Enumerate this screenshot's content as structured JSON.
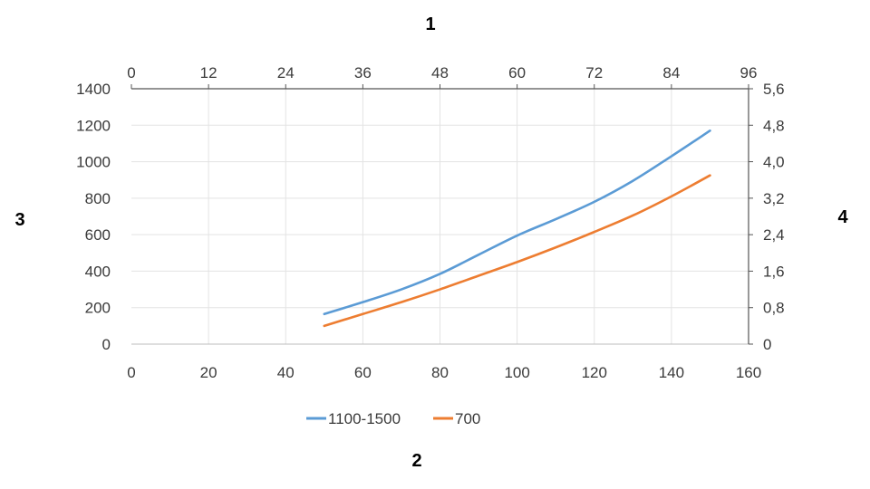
{
  "labels": {
    "top": "1",
    "bottom": "2",
    "left": "3",
    "right": "4"
  },
  "chart_data": {
    "type": "line",
    "title": "",
    "grid": true,
    "legend_position": "bottom",
    "axes": {
      "x_bottom": {
        "min": 0,
        "max": 160,
        "ticks": [
          "0",
          "20",
          "40",
          "60",
          "80",
          "100",
          "120",
          "140",
          "160"
        ]
      },
      "x_top": {
        "min": 0,
        "max": 96,
        "ticks": [
          "0",
          "12",
          "24",
          "36",
          "48",
          "60",
          "72",
          "84",
          "96"
        ]
      },
      "y_left": {
        "min": 0,
        "max": 1400,
        "ticks": [
          "0",
          "200",
          "400",
          "600",
          "800",
          "1000",
          "1200",
          "1400"
        ]
      },
      "y_right": {
        "min": 0,
        "max": 5.6,
        "ticks": [
          "0",
          "0,8",
          "1,6",
          "2,4",
          "3,2",
          "4,0",
          "4,8",
          "5,6"
        ]
      }
    },
    "series": [
      {
        "name": "1100-1500",
        "color": "#5b9bd5",
        "x": [
          50,
          60,
          70,
          80,
          90,
          100,
          110,
          120,
          130,
          140,
          150
        ],
        "y": [
          165,
          230,
          300,
          385,
          490,
          595,
          685,
          780,
          895,
          1030,
          1170
        ]
      },
      {
        "name": "700",
        "color": "#ed7d31",
        "x": [
          50,
          60,
          70,
          80,
          90,
          100,
          110,
          120,
          130,
          140,
          150
        ],
        "y": [
          100,
          165,
          230,
          300,
          375,
          450,
          530,
          615,
          705,
          810,
          925
        ]
      }
    ]
  }
}
